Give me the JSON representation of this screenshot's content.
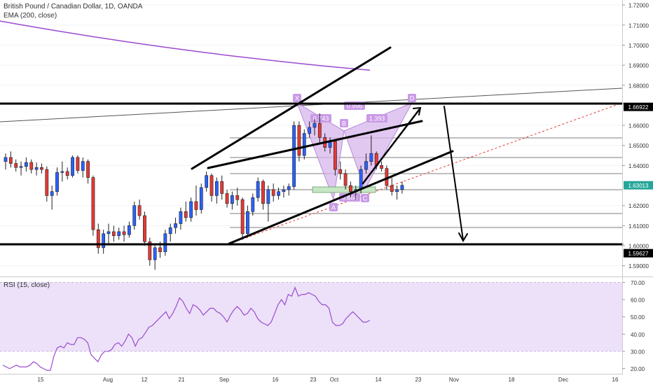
{
  "main_pane": {
    "title": "British Pound / Canadian Dollar, 1D, OANDA",
    "ema_label": "EMA (200, close)",
    "ema_color": "#9c4bd0"
  },
  "rsi_pane": {
    "label": "RSI (15, close)",
    "band_color": "#ece1f8"
  },
  "chart_data": [
    {
      "type": "candlestick",
      "title": "British Pound / Canadian Dollar, 1D, OANDA",
      "y_ticks": [
        "1.72000",
        "1.71000",
        "1.70000",
        "1.69000",
        "1.68000",
        "1.66000",
        "1.65000",
        "1.64000",
        "1.62000",
        "1.61000",
        "1.60000",
        "1.59000"
      ],
      "price_tags": [
        {
          "value": "1.66922",
          "color": "#000000"
        },
        {
          "value": "1.63013",
          "color": "#26a69a"
        },
        {
          "value": "1.59627",
          "color": "#000000"
        }
      ],
      "x_ticks": [
        "15",
        "Aug",
        "12",
        "21",
        "Sep",
        "16",
        "23",
        "Oct",
        "14",
        "23",
        "Nov",
        "18",
        "Dec",
        "16"
      ],
      "ylim": [
        1.585,
        1.7225
      ],
      "up_color": "#2962ff",
      "down_color": "#e53935",
      "candles": [
        {
          "o": 1.642,
          "h": 1.646,
          "l": 1.638,
          "c": 1.644
        },
        {
          "o": 1.644,
          "h": 1.647,
          "l": 1.639,
          "c": 1.641
        },
        {
          "o": 1.641,
          "h": 1.643,
          "l": 1.637,
          "c": 1.639
        },
        {
          "o": 1.639,
          "h": 1.642,
          "l": 1.635,
          "c": 1.6395
        },
        {
          "o": 1.6395,
          "h": 1.644,
          "l": 1.637,
          "c": 1.6415
        },
        {
          "o": 1.6415,
          "h": 1.643,
          "l": 1.636,
          "c": 1.638
        },
        {
          "o": 1.638,
          "h": 1.6415,
          "l": 1.635,
          "c": 1.639
        },
        {
          "o": 1.639,
          "h": 1.641,
          "l": 1.636,
          "c": 1.638
        },
        {
          "o": 1.638,
          "h": 1.6395,
          "l": 1.622,
          "c": 1.625
        },
        {
          "o": 1.625,
          "h": 1.63,
          "l": 1.618,
          "c": 1.627
        },
        {
          "o": 1.627,
          "h": 1.639,
          "l": 1.625,
          "c": 1.6365
        },
        {
          "o": 1.6365,
          "h": 1.642,
          "l": 1.632,
          "c": 1.637
        },
        {
          "o": 1.637,
          "h": 1.639,
          "l": 1.633,
          "c": 1.635
        },
        {
          "o": 1.635,
          "h": 1.645,
          "l": 1.634,
          "c": 1.644
        },
        {
          "o": 1.644,
          "h": 1.645,
          "l": 1.636,
          "c": 1.6375
        },
        {
          "o": 1.6375,
          "h": 1.644,
          "l": 1.634,
          "c": 1.642
        },
        {
          "o": 1.642,
          "h": 1.643,
          "l": 1.631,
          "c": 1.634
        },
        {
          "o": 1.634,
          "h": 1.635,
          "l": 1.605,
          "c": 1.608
        },
        {
          "o": 1.608,
          "h": 1.611,
          "l": 1.596,
          "c": 1.599
        },
        {
          "o": 1.599,
          "h": 1.608,
          "l": 1.596,
          "c": 1.606
        },
        {
          "o": 1.606,
          "h": 1.611,
          "l": 1.601,
          "c": 1.607
        },
        {
          "o": 1.607,
          "h": 1.61,
          "l": 1.602,
          "c": 1.605
        },
        {
          "o": 1.605,
          "h": 1.609,
          "l": 1.603,
          "c": 1.607
        },
        {
          "o": 1.607,
          "h": 1.61,
          "l": 1.602,
          "c": 1.6055
        },
        {
          "o": 1.6055,
          "h": 1.612,
          "l": 1.604,
          "c": 1.61
        },
        {
          "o": 1.61,
          "h": 1.622,
          "l": 1.608,
          "c": 1.62
        },
        {
          "o": 1.62,
          "h": 1.623,
          "l": 1.613,
          "c": 1.615
        },
        {
          "o": 1.615,
          "h": 1.617,
          "l": 1.6,
          "c": 1.602
        },
        {
          "o": 1.602,
          "h": 1.604,
          "l": 1.59,
          "c": 1.593
        },
        {
          "o": 1.593,
          "h": 1.601,
          "l": 1.588,
          "c": 1.599
        },
        {
          "o": 1.599,
          "h": 1.602,
          "l": 1.594,
          "c": 1.597
        },
        {
          "o": 1.597,
          "h": 1.608,
          "l": 1.595,
          "c": 1.606
        },
        {
          "o": 1.606,
          "h": 1.611,
          "l": 1.602,
          "c": 1.609
        },
        {
          "o": 1.609,
          "h": 1.614,
          "l": 1.606,
          "c": 1.611
        },
        {
          "o": 1.611,
          "h": 1.619,
          "l": 1.608,
          "c": 1.617
        },
        {
          "o": 1.617,
          "h": 1.622,
          "l": 1.612,
          "c": 1.614
        },
        {
          "o": 1.614,
          "h": 1.624,
          "l": 1.612,
          "c": 1.622
        },
        {
          "o": 1.622,
          "h": 1.63,
          "l": 1.615,
          "c": 1.618
        },
        {
          "o": 1.618,
          "h": 1.631,
          "l": 1.616,
          "c": 1.629
        },
        {
          "o": 1.629,
          "h": 1.637,
          "l": 1.627,
          "c": 1.635
        },
        {
          "o": 1.635,
          "h": 1.636,
          "l": 1.622,
          "c": 1.625
        },
        {
          "o": 1.625,
          "h": 1.634,
          "l": 1.621,
          "c": 1.632
        },
        {
          "o": 1.632,
          "h": 1.635,
          "l": 1.623,
          "c": 1.626
        },
        {
          "o": 1.626,
          "h": 1.628,
          "l": 1.619,
          "c": 1.621
        },
        {
          "o": 1.621,
          "h": 1.627,
          "l": 1.618,
          "c": 1.625
        },
        {
          "o": 1.625,
          "h": 1.629,
          "l": 1.62,
          "c": 1.623
        },
        {
          "o": 1.623,
          "h": 1.624,
          "l": 1.603,
          "c": 1.606
        },
        {
          "o": 1.606,
          "h": 1.62,
          "l": 1.604,
          "c": 1.617
        },
        {
          "o": 1.617,
          "h": 1.626,
          "l": 1.615,
          "c": 1.624
        },
        {
          "o": 1.624,
          "h": 1.634,
          "l": 1.622,
          "c": 1.632
        },
        {
          "o": 1.632,
          "h": 1.633,
          "l": 1.618,
          "c": 1.621
        },
        {
          "o": 1.621,
          "h": 1.63,
          "l": 1.612,
          "c": 1.628
        },
        {
          "o": 1.628,
          "h": 1.631,
          "l": 1.622,
          "c": 1.625
        },
        {
          "o": 1.625,
          "h": 1.629,
          "l": 1.623,
          "c": 1.627
        },
        {
          "o": 1.627,
          "h": 1.63,
          "l": 1.624,
          "c": 1.628
        },
        {
          "o": 1.628,
          "h": 1.631,
          "l": 1.625,
          "c": 1.6295
        },
        {
          "o": 1.6295,
          "h": 1.662,
          "l": 1.628,
          "c": 1.66
        },
        {
          "o": 1.66,
          "h": 1.662,
          "l": 1.642,
          "c": 1.645
        },
        {
          "o": 1.645,
          "h": 1.658,
          "l": 1.643,
          "c": 1.656
        },
        {
          "o": 1.656,
          "h": 1.662,
          "l": 1.654,
          "c": 1.659
        },
        {
          "o": 1.659,
          "h": 1.663,
          "l": 1.655,
          "c": 1.661
        },
        {
          "o": 1.661,
          "h": 1.666,
          "l": 1.651,
          "c": 1.654
        },
        {
          "o": 1.654,
          "h": 1.656,
          "l": 1.647,
          "c": 1.649
        },
        {
          "o": 1.649,
          "h": 1.654,
          "l": 1.646,
          "c": 1.652
        },
        {
          "o": 1.652,
          "h": 1.653,
          "l": 1.635,
          "c": 1.638
        },
        {
          "o": 1.638,
          "h": 1.642,
          "l": 1.633,
          "c": 1.636
        },
        {
          "o": 1.636,
          "h": 1.638,
          "l": 1.628,
          "c": 1.63
        },
        {
          "o": 1.63,
          "h": 1.632,
          "l": 1.624,
          "c": 1.627
        },
        {
          "o": 1.627,
          "h": 1.63,
          "l": 1.623,
          "c": 1.628
        },
        {
          "o": 1.628,
          "h": 1.64,
          "l": 1.626,
          "c": 1.638
        },
        {
          "o": 1.638,
          "h": 1.646,
          "l": 1.636,
          "c": 1.642
        },
        {
          "o": 1.642,
          "h": 1.655,
          "l": 1.64,
          "c": 1.646
        },
        {
          "o": 1.646,
          "h": 1.647,
          "l": 1.638,
          "c": 1.64
        },
        {
          "o": 1.64,
          "h": 1.642,
          "l": 1.637,
          "c": 1.6385
        },
        {
          "o": 1.6385,
          "h": 1.64,
          "l": 1.628,
          "c": 1.63
        },
        {
          "o": 1.63,
          "h": 1.634,
          "l": 1.625,
          "c": 1.627
        },
        {
          "o": 1.627,
          "h": 1.63,
          "l": 1.623,
          "c": 1.628
        },
        {
          "o": 1.628,
          "h": 1.632,
          "l": 1.626,
          "c": 1.6301
        }
      ]
    },
    {
      "type": "line",
      "title": "RSI (15, close)",
      "y_ticks": [
        "70.00",
        "60.00",
        "50.00",
        "40.00",
        "30.00",
        "20.00"
      ],
      "ylim": [
        17,
        73
      ],
      "band": [
        30,
        70
      ],
      "color": "#9c4bd0",
      "values": [
        22,
        21,
        20,
        21,
        22,
        21,
        21,
        21,
        22,
        24,
        23,
        21,
        20,
        19,
        19,
        27,
        32,
        33,
        32,
        35,
        34,
        34,
        38,
        38,
        37,
        35,
        28,
        26,
        24,
        28,
        30,
        30,
        31,
        34,
        35,
        33,
        36,
        40,
        38,
        33,
        37,
        38,
        41,
        44,
        45,
        47,
        49,
        51,
        53,
        49,
        52,
        56,
        61,
        59,
        55,
        52,
        57,
        56,
        54,
        51,
        53,
        55,
        55,
        53,
        52,
        50,
        47,
        51,
        54,
        56,
        54,
        51,
        52,
        55,
        53,
        49,
        47,
        46,
        45,
        47,
        52,
        57,
        60,
        57,
        63,
        62,
        67,
        62,
        63,
        63,
        64,
        63,
        62,
        59,
        57,
        57,
        55,
        47,
        45,
        45,
        46,
        49,
        51,
        53,
        51,
        49,
        47,
        47,
        48
      ]
    }
  ],
  "harmonic_pattern": {
    "points": [
      "X",
      "A",
      "B",
      "C",
      "D"
    ],
    "ratios": [
      "0.743",
      "0.996",
      "1.393",
      "0.864"
    ],
    "fill_color": "#d7b6ec",
    "label_color": "#b58ad8"
  }
}
